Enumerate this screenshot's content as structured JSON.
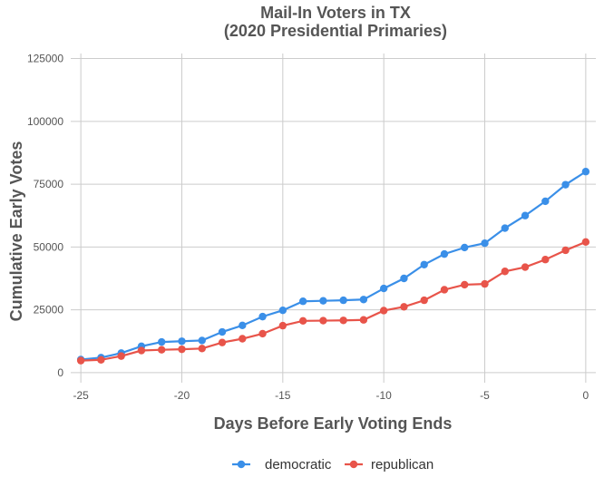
{
  "chart_data": {
    "type": "line",
    "title": [
      "Mail-In Voters in TX",
      "(2020 Presidential Primaries)"
    ],
    "xlabel": "Days Before Early Voting Ends",
    "ylabel": "Cumulative Early Votes",
    "xlim": [
      -25.5,
      0.5
    ],
    "ylim": [
      -4000,
      127000
    ],
    "x_ticks": [
      -25,
      -20,
      -15,
      -10,
      -5,
      0
    ],
    "y_ticks": [
      0,
      25000,
      50000,
      75000,
      100000,
      125000
    ],
    "grid": true,
    "legend_position": "bottom",
    "x": [
      -25,
      -24,
      -23,
      -22,
      -21,
      -20,
      -19,
      -18,
      -17,
      -16,
      -15,
      -14,
      -13,
      -12,
      -11,
      -10,
      -9,
      -8,
      -7,
      -6,
      -5,
      -4,
      -3,
      -2,
      -1,
      0
    ],
    "series": [
      {
        "name": "democratic",
        "color": "#3a8fe8",
        "values": [
          5200,
          6000,
          7800,
          10500,
          12200,
          12500,
          12800,
          16200,
          18800,
          22300,
          24800,
          28400,
          28600,
          28800,
          29100,
          33500,
          37500,
          43000,
          47200,
          49800,
          51500,
          57500,
          62500,
          68200,
          74800,
          80000
        ]
      },
      {
        "name": "republican",
        "color": "#e8544a",
        "values": [
          4800,
          5100,
          6600,
          8800,
          9100,
          9300,
          9600,
          12000,
          13500,
          15500,
          18700,
          20600,
          20700,
          20800,
          21000,
          24700,
          26200,
          28800,
          33000,
          35000,
          35300,
          40300,
          42000,
          45000,
          48700,
          52000
        ]
      }
    ]
  }
}
